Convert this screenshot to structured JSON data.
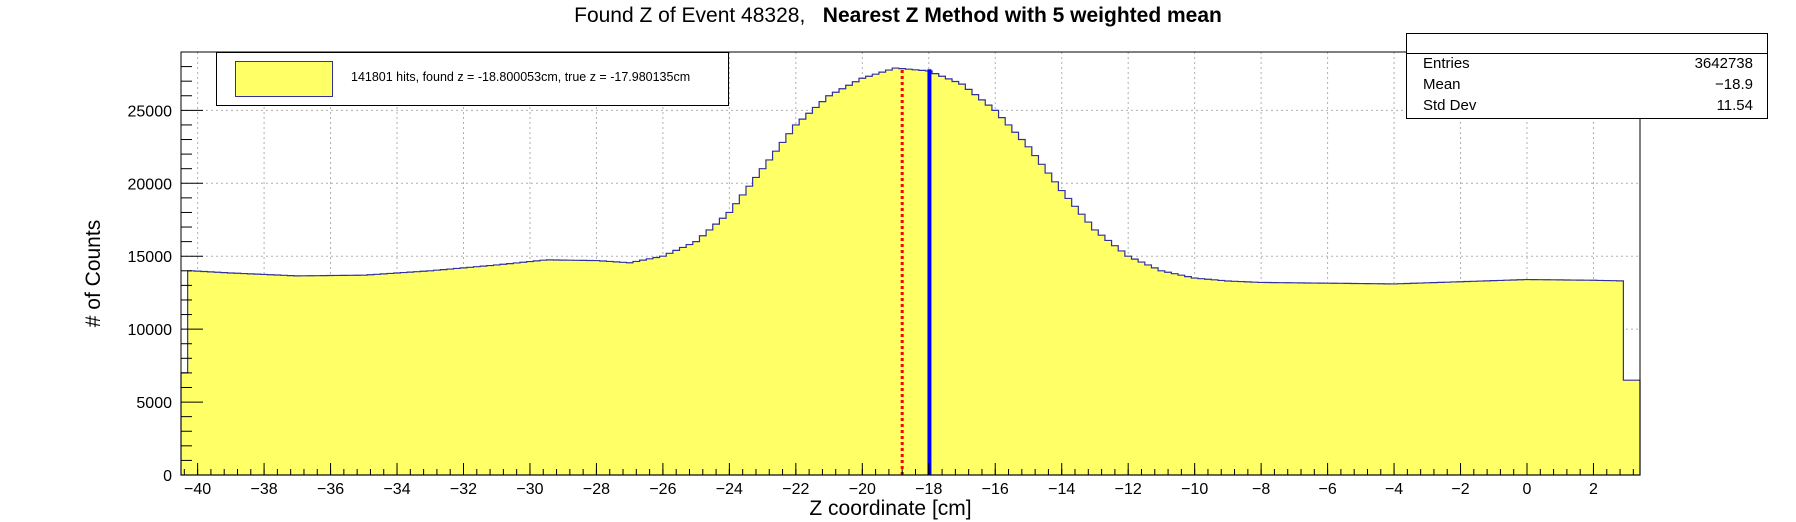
{
  "title": {
    "main": "Found Z of Event 48328,",
    "bold": "Nearest Z Method with 5 weighted mean"
  },
  "legend": {
    "label": "141801 hits, found z = -18.800053cm, true z = -17.980135cm"
  },
  "stats": {
    "rows": [
      {
        "name": "Entries",
        "value": "3642738"
      },
      {
        "name": "Mean",
        "value": "−18.9"
      },
      {
        "name": "Std Dev",
        "value": "11.54"
      }
    ]
  },
  "colors": {
    "fill": "#ffff66",
    "line": "#3030a0",
    "true_z_line": "#0000ff",
    "found_z_line": "#ff0000",
    "grid": "#b0b0b0"
  },
  "chart_data": {
    "type": "bar",
    "style": "histogram",
    "xlabel": "Z coordinate [cm]",
    "ylabel": "# of Counts",
    "xlim": [
      -40.5,
      3.4
    ],
    "ylim": [
      0,
      29000
    ],
    "xticks": [
      -40,
      -38,
      -36,
      -34,
      -32,
      -30,
      -28,
      -26,
      -24,
      -22,
      -20,
      -18,
      -16,
      -14,
      -12,
      -10,
      -8,
      -6,
      -4,
      -2,
      0,
      2
    ],
    "yticks": [
      0,
      5000,
      10000,
      15000,
      20000,
      25000
    ],
    "grid": true,
    "legend_position": "top-left",
    "found_z": -18.800053,
    "true_z": -17.980135,
    "histogram_points": [
      {
        "x": -40.5,
        "y": 7000
      },
      {
        "x": -40.2,
        "y": 14000
      },
      {
        "x": -39.0,
        "y": 13850
      },
      {
        "x": -37.0,
        "y": 13650
      },
      {
        "x": -35.0,
        "y": 13700
      },
      {
        "x": -33.0,
        "y": 14000
      },
      {
        "x": -31.0,
        "y": 14400
      },
      {
        "x": -29.5,
        "y": 14750
      },
      {
        "x": -28.0,
        "y": 14700
      },
      {
        "x": -27.0,
        "y": 14550
      },
      {
        "x": -26.0,
        "y": 15000
      },
      {
        "x": -25.0,
        "y": 16000
      },
      {
        "x": -24.0,
        "y": 18000
      },
      {
        "x": -23.0,
        "y": 21000
      },
      {
        "x": -22.0,
        "y": 24000
      },
      {
        "x": -21.0,
        "y": 26000
      },
      {
        "x": -20.0,
        "y": 27200
      },
      {
        "x": -19.0,
        "y": 27900
      },
      {
        "x": -18.0,
        "y": 27700
      },
      {
        "x": -17.0,
        "y": 26800
      },
      {
        "x": -16.0,
        "y": 25000
      },
      {
        "x": -15.0,
        "y": 22500
      },
      {
        "x": -14.0,
        "y": 19500
      },
      {
        "x": -13.0,
        "y": 16800
      },
      {
        "x": -12.0,
        "y": 15000
      },
      {
        "x": -11.0,
        "y": 14000
      },
      {
        "x": -10.0,
        "y": 13500
      },
      {
        "x": -9.0,
        "y": 13300
      },
      {
        "x": -8.0,
        "y": 13200
      },
      {
        "x": -6.0,
        "y": 13150
      },
      {
        "x": -4.0,
        "y": 13100
      },
      {
        "x": -2.0,
        "y": 13250
      },
      {
        "x": 0.0,
        "y": 13400
      },
      {
        "x": 2.0,
        "y": 13350
      },
      {
        "x": 3.0,
        "y": 13300
      },
      {
        "x": 3.1,
        "y": 6500
      }
    ]
  }
}
